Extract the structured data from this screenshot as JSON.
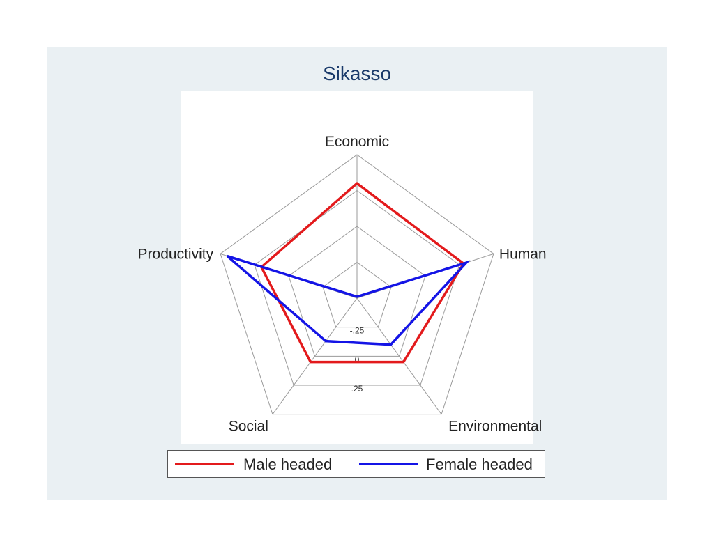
{
  "chart_data": {
    "type": "radar",
    "title": "Sikasso",
    "axes": [
      "Economic",
      "Human",
      "Environmental",
      "Social",
      "Productivity"
    ],
    "rlim": [
      -0.5,
      0.5
    ],
    "rings": [
      -0.25,
      0,
      0.25
    ],
    "ring_labels": [
      "-.25",
      "0",
      ".25"
    ],
    "series": [
      {
        "name": "Male headed",
        "color": "#e31a1c",
        "values": [
          0.3,
          0.28,
          0.05,
          0.05,
          0.2
        ]
      },
      {
        "name": "Female headed",
        "color": "#1414e6",
        "values": [
          -0.49,
          0.3,
          -0.1,
          -0.13,
          0.45
        ]
      }
    ],
    "grid": true,
    "legend_position": "bottom"
  }
}
